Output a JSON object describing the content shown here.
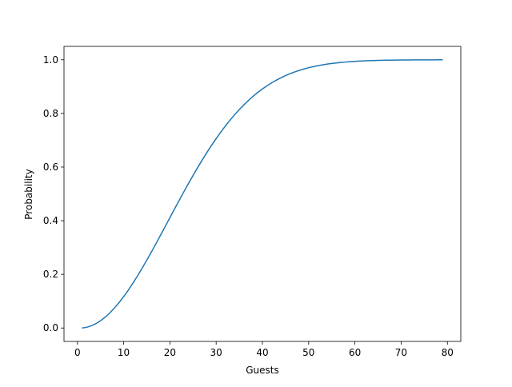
{
  "chart_data": {
    "type": "line",
    "xlabel": "Guests",
    "ylabel": "Probability",
    "x": [
      1,
      2,
      3,
      4,
      5,
      6,
      7,
      8,
      9,
      10,
      11,
      12,
      13,
      14,
      15,
      16,
      17,
      18,
      19,
      20,
      21,
      22,
      23,
      24,
      25,
      26,
      27,
      28,
      29,
      30,
      31,
      32,
      33,
      34,
      35,
      36,
      37,
      38,
      39,
      40,
      41,
      42,
      43,
      44,
      45,
      46,
      47,
      48,
      49,
      50,
      51,
      52,
      53,
      54,
      55,
      56,
      57,
      58,
      59,
      60,
      61,
      62,
      63,
      64,
      65,
      66,
      67,
      68,
      69,
      70,
      71,
      72,
      73,
      74,
      75,
      76,
      77,
      78,
      79
    ],
    "series": [
      {
        "color": "#1f77b4",
        "values": [
          0,
          0.0027,
          0.0082,
          0.0164,
          0.0271,
          0.0405,
          0.0562,
          0.0743,
          0.0946,
          0.1169,
          0.1411,
          0.167,
          0.1944,
          0.2231,
          0.2529,
          0.2836,
          0.315,
          0.3469,
          0.3791,
          0.4114,
          0.4437,
          0.4757,
          0.5073,
          0.5383,
          0.5687,
          0.5982,
          0.6269,
          0.6545,
          0.681,
          0.7063,
          0.7305,
          0.7533,
          0.775,
          0.7953,
          0.8144,
          0.8322,
          0.8487,
          0.8641,
          0.8782,
          0.8912,
          0.9032,
          0.914,
          0.9239,
          0.9329,
          0.941,
          0.9483,
          0.9548,
          0.9606,
          0.9658,
          0.9704,
          0.9744,
          0.978,
          0.9811,
          0.9839,
          0.9863,
          0.9883,
          0.9901,
          0.9917,
          0.993,
          0.9941,
          0.9951,
          0.9959,
          0.9966,
          0.9972,
          0.9977,
          0.9981,
          0.9984,
          0.9987,
          0.999,
          0.9992,
          0.9993,
          0.9995,
          0.9996,
          0.9996,
          0.9997,
          0.9998,
          0.9998,
          0.9999,
          0.9999
        ]
      }
    ],
    "xlim": [
      -2.9,
      82.9
    ],
    "xticks": [
      0,
      10,
      20,
      30,
      40,
      50,
      60,
      70,
      80
    ],
    "ylim": [
      -0.05,
      1.05
    ],
    "yticks": [
      {
        "value": 0,
        "label": "0.0"
      },
      {
        "value": 0.2,
        "label": "0.2"
      },
      {
        "value": 0.4,
        "label": "0.4"
      },
      {
        "value": 0.6,
        "label": "0.6"
      },
      {
        "value": 0.8,
        "label": "0.8"
      },
      {
        "value": 1,
        "label": "1.0"
      }
    ],
    "grid": false
  }
}
